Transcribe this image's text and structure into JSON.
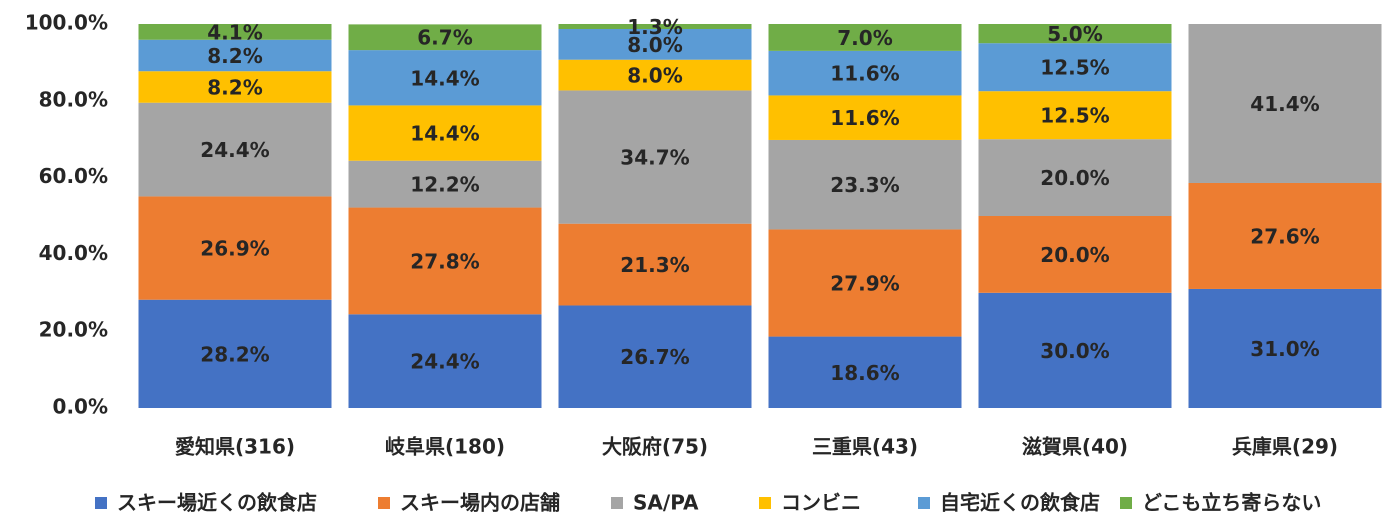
{
  "chart_data": {
    "type": "stacked_bar",
    "categories": [
      "愛知県(316)",
      "岐阜県(180)",
      "大阪府(75)",
      "三重県(43)",
      "滋賀県(40)",
      "兵庫県(29)"
    ],
    "series": [
      {
        "name": "スキー場近くの飲食店",
        "color": "#4472c4",
        "values": [
          28.2,
          24.4,
          26.7,
          18.6,
          30.0,
          31.0
        ],
        "value_labels": [
          "28.2%",
          "24.4%",
          "26.7%",
          "18.6%",
          "30.0%",
          "31.0%"
        ]
      },
      {
        "name": "スキー場内の店舗",
        "color": "#ed7d31",
        "values": [
          26.9,
          27.8,
          21.3,
          27.9,
          20.0,
          27.6
        ],
        "value_labels": [
          "26.9%",
          "27.8%",
          "21.3%",
          "27.9%",
          "20.0%",
          "27.6%"
        ]
      },
      {
        "name": "SA/PA",
        "color": "#a5a5a5",
        "values": [
          24.4,
          12.2,
          34.7,
          23.3,
          20.0,
          41.4
        ],
        "value_labels": [
          "24.4%",
          "12.2%",
          "34.7%",
          "23.3%",
          "20.0%",
          "41.4%"
        ]
      },
      {
        "name": "コンビニ",
        "color": "#ffc000",
        "values": [
          8.2,
          14.4,
          8.0,
          11.6,
          12.5,
          null
        ],
        "value_labels": [
          "8.2%",
          "14.4%",
          "8.0%",
          "11.6%",
          "12.5%",
          null
        ]
      },
      {
        "name": "自宅近くの飲食店",
        "color": "#5b9bd5",
        "values": [
          8.2,
          14.4,
          8.0,
          11.6,
          12.5,
          null
        ],
        "value_labels": [
          "8.2%",
          "14.4%",
          "8.0%",
          "11.6%",
          "12.5%",
          null
        ]
      },
      {
        "name": "どこも立ち寄らない",
        "color": "#70ad47",
        "values": [
          4.1,
          6.7,
          1.3,
          7.0,
          5.0,
          null
        ],
        "value_labels": [
          "4.1%",
          "6.7%",
          "1.3%",
          "7.0%",
          "5.0%",
          null
        ]
      }
    ],
    "ylim": [
      0,
      100
    ],
    "yticks": [
      {
        "value": 0,
        "label": "0.0%"
      },
      {
        "value": 20,
        "label": "20.0%"
      },
      {
        "value": 40,
        "label": "40.0%"
      },
      {
        "value": 60,
        "label": "60.0%"
      },
      {
        "value": 80,
        "label": "80.0%"
      },
      {
        "value": 100,
        "label": "100.0%"
      }
    ],
    "legend": "bottom"
  }
}
